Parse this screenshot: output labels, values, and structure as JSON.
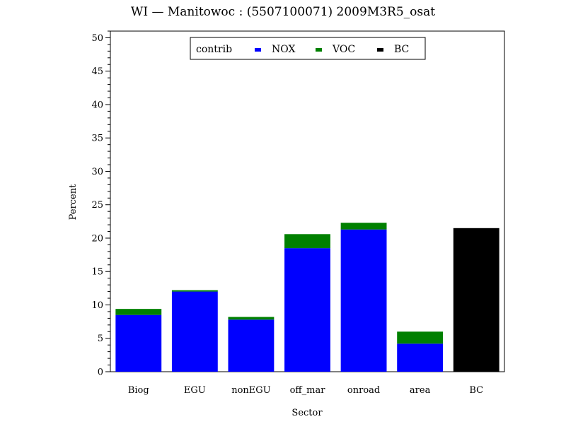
{
  "chart_data": {
    "type": "bar",
    "stacked": true,
    "title": "WI  —  Manitowoc  :  (5507100071)  2009M3R5_osat",
    "xlabel": "Sector",
    "ylabel": "Percent",
    "ylim": [
      0,
      51
    ],
    "yticks": [
      0,
      5,
      10,
      15,
      20,
      25,
      30,
      35,
      40,
      45,
      50
    ],
    "y_minor_step": 1,
    "categories": [
      "Biog",
      "EGU",
      "nonEGU",
      "off_mar",
      "onroad",
      "area",
      "BC"
    ],
    "legend": {
      "title": "contrib",
      "placement": "top-center"
    },
    "series": [
      {
        "name": "NOX",
        "color": "#0000ff",
        "values": [
          8.5,
          12.0,
          7.8,
          18.5,
          21.3,
          4.2,
          0
        ]
      },
      {
        "name": "VOC",
        "color": "#008000",
        "values": [
          0.9,
          0.2,
          0.4,
          2.1,
          1.0,
          1.8,
          0
        ]
      },
      {
        "name": "BC",
        "color": "#000000",
        "values": [
          0,
          0,
          0,
          0,
          0,
          0,
          21.5
        ]
      }
    ],
    "grid": false
  }
}
